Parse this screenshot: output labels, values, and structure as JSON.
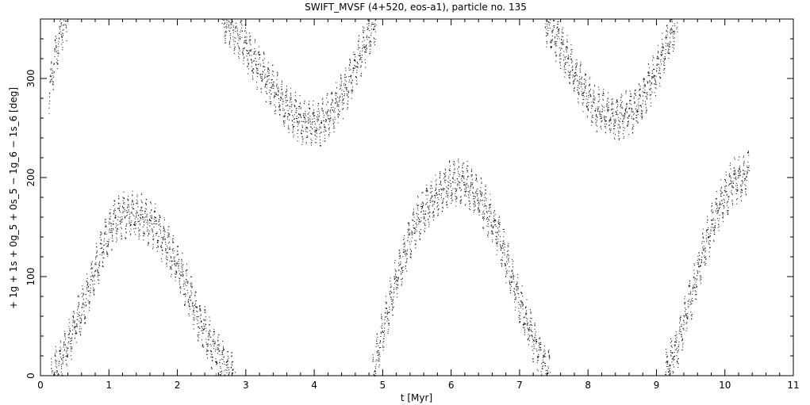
{
  "chart_data": {
    "type": "scatter",
    "title": "SWIFT_MVSF (4+520, eos-a1), particle no. 135",
    "xlabel": "t [Myr]",
    "ylabel": "+ 1g + 1s + 0g_5 + 0s_5 − 1g_6 − 1s_6 [deg]",
    "xlim": [
      0,
      11
    ],
    "ylim": [
      0,
      360
    ],
    "x_ticks": [
      0,
      1,
      2,
      3,
      4,
      5,
      6,
      7,
      8,
      9,
      10,
      11
    ],
    "x_tick_labels": [
      "0",
      "1",
      "2",
      "3",
      "4",
      "5",
      "6",
      "7",
      "8",
      "9",
      "10",
      "11"
    ],
    "y_ticks": [
      0,
      100,
      200,
      300
    ],
    "y_tick_labels": [
      "0",
      "100",
      "200",
      "300"
    ],
    "grid": false,
    "marker_color": "#000000",
    "series": [
      {
        "values_note": "",
        "segments": [
          {
            "points": [
              [
                0.12,
                280
              ],
              [
                0.2,
                320
              ],
              [
                0.3,
                350
              ],
              [
                0.38,
                360
              ]
            ]
          },
          {
            "points": [
              [
                0.15,
                0
              ],
              [
                0.3,
                15
              ],
              [
                0.5,
                50
              ],
              [
                0.7,
                85
              ],
              [
                0.9,
                130
              ],
              [
                1.1,
                158
              ],
              [
                1.3,
                165
              ],
              [
                1.5,
                160
              ],
              [
                1.7,
                148
              ],
              [
                1.9,
                125
              ],
              [
                2.1,
                95
              ],
              [
                2.3,
                60
              ],
              [
                2.5,
                30
              ],
              [
                2.7,
                8
              ],
              [
                2.85,
                0
              ]
            ]
          },
          {
            "points": [
              [
                2.65,
                360
              ],
              [
                2.9,
                345
              ],
              [
                3.1,
                320
              ],
              [
                3.35,
                295
              ],
              [
                3.6,
                270
              ],
              [
                3.85,
                255
              ],
              [
                4.1,
                255
              ],
              [
                4.3,
                270
              ],
              [
                4.5,
                295
              ],
              [
                4.65,
                320
              ],
              [
                4.8,
                345
              ],
              [
                4.9,
                360
              ]
            ]
          },
          {
            "points": [
              [
                4.85,
                0
              ],
              [
                4.95,
                30
              ],
              [
                5.1,
                75
              ],
              [
                5.3,
                120
              ],
              [
                5.5,
                158
              ],
              [
                5.75,
                180
              ],
              [
                6.0,
                195
              ],
              [
                6.2,
                195
              ],
              [
                6.45,
                175
              ],
              [
                6.7,
                140
              ],
              [
                6.9,
                95
              ],
              [
                7.1,
                55
              ],
              [
                7.3,
                20
              ],
              [
                7.45,
                0
              ]
            ]
          },
          {
            "points": [
              [
                7.35,
                360
              ],
              [
                7.55,
                340
              ],
              [
                7.8,
                305
              ],
              [
                8.1,
                270
              ],
              [
                8.4,
                260
              ],
              [
                8.7,
                270
              ],
              [
                8.95,
                300
              ],
              [
                9.15,
                335
              ],
              [
                9.3,
                360
              ]
            ]
          },
          {
            "points": [
              [
                9.1,
                0
              ],
              [
                9.3,
                30
              ],
              [
                9.5,
                80
              ],
              [
                9.7,
                130
              ],
              [
                9.9,
                170
              ],
              [
                10.1,
                195
              ],
              [
                10.35,
                205
              ]
            ]
          }
        ]
      }
    ]
  }
}
